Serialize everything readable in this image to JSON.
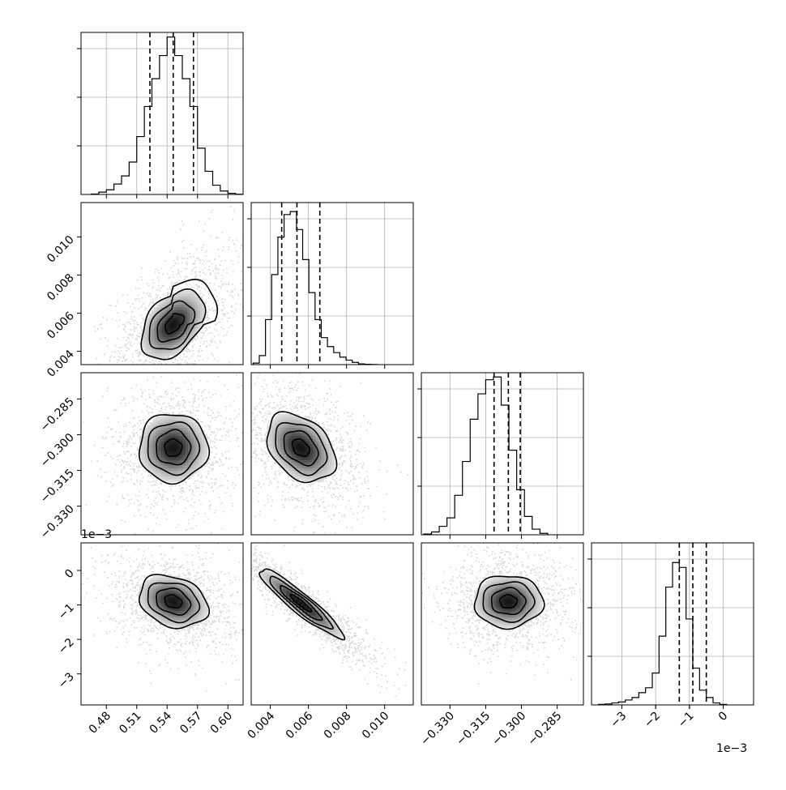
{
  "chart_data": [
    {
      "type": "histogram",
      "panel": [
        0,
        0
      ],
      "param_index": 0,
      "xlim": [
        0.455,
        0.615
      ],
      "xticks": [
        0.48,
        0.51,
        0.54,
        0.57,
        0.6
      ],
      "grid": true,
      "edges_start": 0.465,
      "bin_width": 0.0075,
      "counts": [
        0.2,
        1.0,
        2.0,
        4.5,
        8.0,
        14.0,
        25.0,
        38.0,
        50.0,
        60.0,
        68.0,
        60.0,
        50.0,
        38.0,
        20.0,
        10.0,
        4.0,
        1.5,
        0.5,
        0.1
      ],
      "ymax": 70,
      "quantiles": [
        0.523,
        0.546,
        0.566
      ]
    },
    {
      "type": "histogram",
      "panel": [
        1,
        1
      ],
      "param_index": 1,
      "xlim": [
        0.003,
        0.0115
      ],
      "xticks": [
        0.004,
        0.006,
        0.008,
        0.01
      ],
      "grid": true,
      "edges_start": 0.0031,
      "bin_width": 0.000325,
      "counts": [
        1.0,
        6.0,
        30.0,
        60.0,
        85.0,
        100.0,
        102.0,
        90.0,
        70.0,
        48.0,
        30.0,
        18.0,
        12.0,
        8.0,
        5.0,
        3.0,
        1.5,
        0.5,
        0.2,
        0.1
      ],
      "ymax": 108,
      "quantiles": [
        0.0046,
        0.0054,
        0.0066
      ]
    },
    {
      "type": "histogram",
      "panel": [
        2,
        2
      ],
      "param_index": 2,
      "xlim": [
        -0.342,
        -0.274
      ],
      "xticks": [
        -0.33,
        -0.315,
        -0.3,
        -0.285
      ],
      "grid": true,
      "edges_start": -0.341,
      "bin_width": 0.00325,
      "counts": [
        0.5,
        2.0,
        6.0,
        12.0,
        28.0,
        52.0,
        82.0,
        100.0,
        110.0,
        112.0,
        92.0,
        60.0,
        32.0,
        13.0,
        4.0,
        1.0
      ],
      "ymax": 115,
      "quantiles": [
        -0.3115,
        -0.3055,
        -0.3005
      ]
    },
    {
      "type": "histogram",
      "panel": [
        3,
        3
      ],
      "param_index": 3,
      "xlim": [
        -3.9,
        0.9
      ],
      "xticks": [
        -3,
        -2,
        -1,
        0
      ],
      "grid": true,
      "edges_start": -3.7,
      "bin_width": 0.2,
      "counts": [
        0.2,
        0.4,
        0.8,
        1.2,
        2.0,
        3.0,
        5.0,
        7.0,
        13.0,
        28.0,
        48.0,
        58.0,
        56.0,
        35.0,
        15.0,
        6.0,
        3.0,
        0.8,
        0.2
      ],
      "ymax": 66,
      "quantiles": [
        -1.3,
        -0.9,
        -0.5
      ],
      "axis_offset_label": "1e−3"
    },
    {
      "type": "kde2d",
      "panel": [
        1,
        0
      ],
      "x_index": 0,
      "y_index": 1,
      "xlim": [
        0.455,
        0.615
      ],
      "ylim": [
        0.0033,
        0.0118
      ],
      "yticks": [
        0.004,
        0.006,
        0.008,
        0.01
      ],
      "mean": [
        0.546,
        0.0054
      ],
      "std": [
        0.016,
        0.0009
      ],
      "rho": 0.42,
      "skew": "tail toward upper-right",
      "levels_sigma": [
        0.5,
        1.0,
        1.5,
        2.0
      ]
    },
    {
      "type": "kde2d",
      "panel": [
        2,
        0
      ],
      "x_index": 0,
      "y_index": 2,
      "xlim": [
        0.455,
        0.615
      ],
      "ylim": [
        -0.342,
        -0.274
      ],
      "yticks": [
        -0.33,
        -0.315,
        -0.3,
        -0.285
      ],
      "mean": [
        0.546,
        -0.3055
      ],
      "std": [
        0.017,
        0.0072
      ],
      "rho": 0.0,
      "levels_sigma": [
        0.5,
        1.0,
        1.5,
        2.0
      ]
    },
    {
      "type": "kde2d",
      "panel": [
        2,
        1
      ],
      "x_index": 1,
      "y_index": 2,
      "xlim": [
        0.003,
        0.0115
      ],
      "ylim": [
        -0.342,
        -0.274
      ],
      "mean": [
        0.0056,
        -0.3055
      ],
      "std": [
        0.0009,
        0.0072
      ],
      "rho": -0.35,
      "levels_sigma": [
        0.5,
        1.0,
        1.5,
        2.0
      ]
    },
    {
      "type": "kde2d",
      "panel": [
        3,
        0
      ],
      "x_index": 0,
      "y_index": 3,
      "xlim": [
        0.455,
        0.615
      ],
      "ylim": [
        -3.9,
        0.8
      ],
      "yticks": [
        -3,
        -2,
        -1,
        0
      ],
      "mean": [
        0.546,
        -0.9
      ],
      "std": [
        0.017,
        0.38
      ],
      "rho": -0.25,
      "levels_sigma": [
        0.5,
        1.0,
        1.5,
        2.0
      ],
      "axis_offset_label": "1e−3"
    },
    {
      "type": "kde2d",
      "panel": [
        3,
        1
      ],
      "x_index": 1,
      "y_index": 3,
      "xlim": [
        0.003,
        0.0115
      ],
      "ylim": [
        -3.9,
        0.8
      ],
      "mean": [
        0.0056,
        -0.95
      ],
      "std": [
        0.0011,
        0.5
      ],
      "rho": -0.93,
      "levels_sigma": [
        0.5,
        1.0,
        1.5,
        2.0
      ]
    },
    {
      "type": "kde2d",
      "panel": [
        3,
        2
      ],
      "x_index": 2,
      "y_index": 3,
      "xlim": [
        -0.342,
        -0.274
      ],
      "ylim": [
        -3.9,
        0.8
      ],
      "mean": [
        -0.3055,
        -0.9
      ],
      "std": [
        0.0072,
        0.38
      ],
      "rho": 0.0,
      "levels_sigma": [
        0.5,
        1.0,
        1.5,
        2.0
      ]
    }
  ],
  "labels": {
    "x0_ticks": [
      "0.48",
      "0.51",
      "0.54",
      "0.57",
      "0.60"
    ],
    "x1_ticks": [
      "0.004",
      "0.006",
      "0.008",
      "0.010"
    ],
    "x2_ticks": [
      "−0.330",
      "−0.315",
      "−0.300",
      "−0.285"
    ],
    "x3_ticks": [
      "−3",
      "−2",
      "−1",
      "0"
    ],
    "y1_ticks": [
      "0.004",
      "0.006",
      "0.008",
      "0.010"
    ],
    "y2_ticks": [
      "−0.330",
      "−0.315",
      "−0.300",
      "−0.285"
    ],
    "y3_ticks": [
      "−3",
      "−2",
      "−1",
      "0"
    ],
    "offset_left": "1e−3",
    "offset_bottom": "1e−3"
  }
}
